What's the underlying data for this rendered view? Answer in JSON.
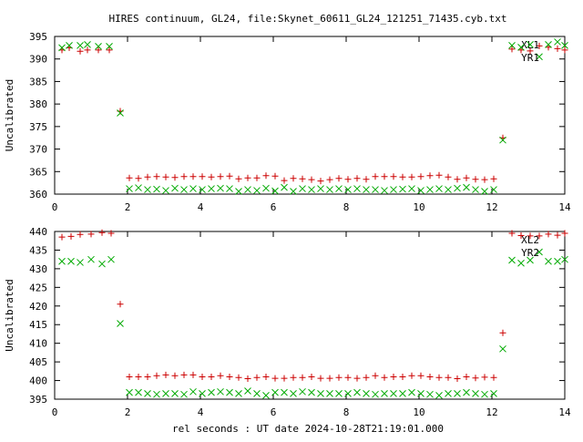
{
  "chart_data": [
    {
      "type": "scatter",
      "title": "HIRES continuum, GL24, file:Skynet_60611_GL24_121251_71435.cyb.txt",
      "xlabel": "",
      "ylabel": "Uncalibrated",
      "xlim": [
        0,
        14
      ],
      "ylim": [
        360,
        395
      ],
      "xticks": [
        0,
        2,
        4,
        6,
        8,
        10,
        12,
        14
      ],
      "yticks": [
        360,
        365,
        370,
        375,
        380,
        385,
        390,
        395
      ],
      "legend_position": "top-right",
      "series": [
        {
          "name": "XL1",
          "marker": "plus",
          "color": "#cc0000",
          "x": [
            0.2,
            0.4,
            0.7,
            0.9,
            1.2,
            1.5,
            1.8,
            2.05,
            2.3,
            2.55,
            2.8,
            3.05,
            3.3,
            3.55,
            3.8,
            4.05,
            4.3,
            4.55,
            4.8,
            5.05,
            5.3,
            5.55,
            5.8,
            6.05,
            6.3,
            6.55,
            6.8,
            7.05,
            7.3,
            7.55,
            7.8,
            8.05,
            8.3,
            8.55,
            8.8,
            9.05,
            9.3,
            9.55,
            9.8,
            10.05,
            10.3,
            10.55,
            10.8,
            11.05,
            11.3,
            11.55,
            11.8,
            12.05,
            12.3,
            12.55,
            12.8,
            13.05,
            13.3,
            13.55,
            13.8,
            14.0
          ],
          "y": [
            392.0,
            392.5,
            391.7,
            392.0,
            392.0,
            392.0,
            378.4,
            363.6,
            363.5,
            363.8,
            363.9,
            363.8,
            363.7,
            363.9,
            363.9,
            363.9,
            363.8,
            363.9,
            364.0,
            363.4,
            363.6,
            363.6,
            364.1,
            364.0,
            363.0,
            363.5,
            363.4,
            363.2,
            362.9,
            363.2,
            363.5,
            363.3,
            363.5,
            363.3,
            363.9,
            363.9,
            363.9,
            363.8,
            363.8,
            363.9,
            364.1,
            364.2,
            363.8,
            363.3,
            363.6,
            363.3,
            363.2,
            363.4,
            372.5,
            392.2,
            392.0,
            391.8,
            392.9,
            392.6,
            392.3,
            392.0
          ]
        },
        {
          "name": "YR1",
          "marker": "cross",
          "color": "#00aa00",
          "x": [
            0.2,
            0.4,
            0.7,
            0.9,
            1.2,
            1.5,
            1.8,
            2.05,
            2.3,
            2.55,
            2.8,
            3.05,
            3.3,
            3.55,
            3.8,
            4.05,
            4.3,
            4.55,
            4.8,
            5.05,
            5.3,
            5.55,
            5.8,
            6.05,
            6.3,
            6.55,
            6.8,
            7.05,
            7.3,
            7.55,
            7.8,
            8.05,
            8.3,
            8.55,
            8.8,
            9.05,
            9.3,
            9.55,
            9.8,
            10.05,
            10.3,
            10.55,
            10.8,
            11.05,
            11.3,
            11.55,
            11.8,
            12.05,
            12.3,
            12.55,
            12.8,
            13.05,
            13.3,
            13.55,
            13.8,
            14.0
          ],
          "y": [
            392.5,
            393.0,
            393.0,
            393.2,
            392.8,
            392.8,
            378.0,
            361.2,
            361.4,
            361.0,
            361.1,
            360.8,
            361.3,
            361.0,
            361.2,
            361.0,
            361.2,
            361.3,
            361.2,
            360.6,
            361.0,
            360.8,
            361.3,
            360.7,
            361.5,
            360.6,
            361.2,
            361.0,
            361.2,
            361.0,
            361.2,
            361.0,
            361.2,
            361.0,
            361.0,
            360.8,
            361.0,
            361.1,
            361.2,
            360.8,
            361.0,
            361.2,
            361.0,
            361.3,
            361.5,
            361.0,
            360.6,
            361.0,
            372.0,
            393.0,
            392.6,
            393.2,
            390.5,
            393.2,
            393.8,
            393.0
          ]
        }
      ]
    },
    {
      "type": "scatter",
      "title": "",
      "xlabel": "rel seconds : UT date 2024-10-28T21:19:01.000",
      "ylabel": "Uncalibrated",
      "xlim": [
        0,
        14
      ],
      "ylim": [
        395,
        440
      ],
      "xticks": [
        0,
        2,
        4,
        6,
        8,
        10,
        12,
        14
      ],
      "yticks": [
        395,
        400,
        405,
        410,
        415,
        420,
        425,
        430,
        435,
        440
      ],
      "legend_position": "top-right",
      "series": [
        {
          "name": "XL2",
          "marker": "plus",
          "color": "#cc0000",
          "x": [
            0.2,
            0.45,
            0.7,
            1.0,
            1.3,
            1.55,
            1.8,
            2.05,
            2.3,
            2.55,
            2.8,
            3.05,
            3.3,
            3.55,
            3.8,
            4.05,
            4.3,
            4.55,
            4.8,
            5.05,
            5.3,
            5.55,
            5.8,
            6.05,
            6.3,
            6.55,
            6.8,
            7.05,
            7.3,
            7.55,
            7.8,
            8.05,
            8.3,
            8.55,
            8.8,
            9.05,
            9.3,
            9.55,
            9.8,
            10.05,
            10.3,
            10.55,
            10.8,
            11.05,
            11.3,
            11.55,
            11.8,
            12.05,
            12.3,
            12.55,
            12.8,
            13.05,
            13.3,
            13.55,
            13.8,
            14.0
          ],
          "y": [
            438.5,
            438.7,
            439.2,
            439.3,
            439.7,
            439.5,
            420.5,
            401.0,
            401.0,
            401.0,
            401.3,
            401.5,
            401.3,
            401.5,
            401.5,
            401.0,
            401.0,
            401.3,
            401.0,
            400.8,
            400.5,
            400.8,
            401.0,
            400.6,
            400.6,
            400.8,
            400.8,
            401.0,
            400.6,
            400.6,
            400.8,
            400.8,
            400.6,
            400.8,
            401.3,
            400.8,
            401.0,
            401.0,
            401.3,
            401.3,
            401.0,
            400.8,
            400.8,
            400.5,
            401.0,
            400.7,
            400.9,
            400.8,
            412.8,
            439.5,
            438.9,
            438.8,
            438.8,
            439.3,
            439.0,
            439.5
          ]
        },
        {
          "name": "YR2",
          "marker": "cross",
          "color": "#00aa00",
          "x": [
            0.2,
            0.45,
            0.7,
            1.0,
            1.3,
            1.55,
            1.8,
            2.05,
            2.3,
            2.55,
            2.8,
            3.05,
            3.3,
            3.55,
            3.8,
            4.05,
            4.3,
            4.55,
            4.8,
            5.05,
            5.3,
            5.55,
            5.8,
            6.05,
            6.3,
            6.55,
            6.8,
            7.05,
            7.3,
            7.55,
            7.8,
            8.05,
            8.3,
            8.55,
            8.8,
            9.05,
            9.3,
            9.55,
            9.8,
            10.05,
            10.3,
            10.55,
            10.8,
            11.05,
            11.3,
            11.55,
            11.8,
            12.05,
            12.3,
            12.55,
            12.8,
            13.05,
            13.3,
            13.55,
            13.8,
            14.0
          ],
          "y": [
            432.0,
            432.0,
            431.7,
            432.5,
            431.3,
            432.5,
            415.3,
            396.8,
            396.8,
            396.5,
            396.3,
            396.5,
            396.5,
            396.3,
            397.0,
            396.5,
            396.8,
            397.0,
            396.8,
            396.5,
            397.2,
            396.5,
            396.0,
            396.8,
            396.8,
            396.5,
            397.0,
            396.8,
            396.5,
            396.5,
            396.5,
            396.5,
            396.8,
            396.5,
            396.3,
            396.5,
            396.5,
            396.5,
            396.8,
            396.5,
            396.3,
            396.0,
            396.5,
            396.5,
            396.8,
            396.5,
            396.3,
            396.5,
            408.5,
            432.3,
            431.5,
            432.3,
            434.5,
            432.0,
            432.0,
            432.5
          ]
        }
      ]
    }
  ]
}
